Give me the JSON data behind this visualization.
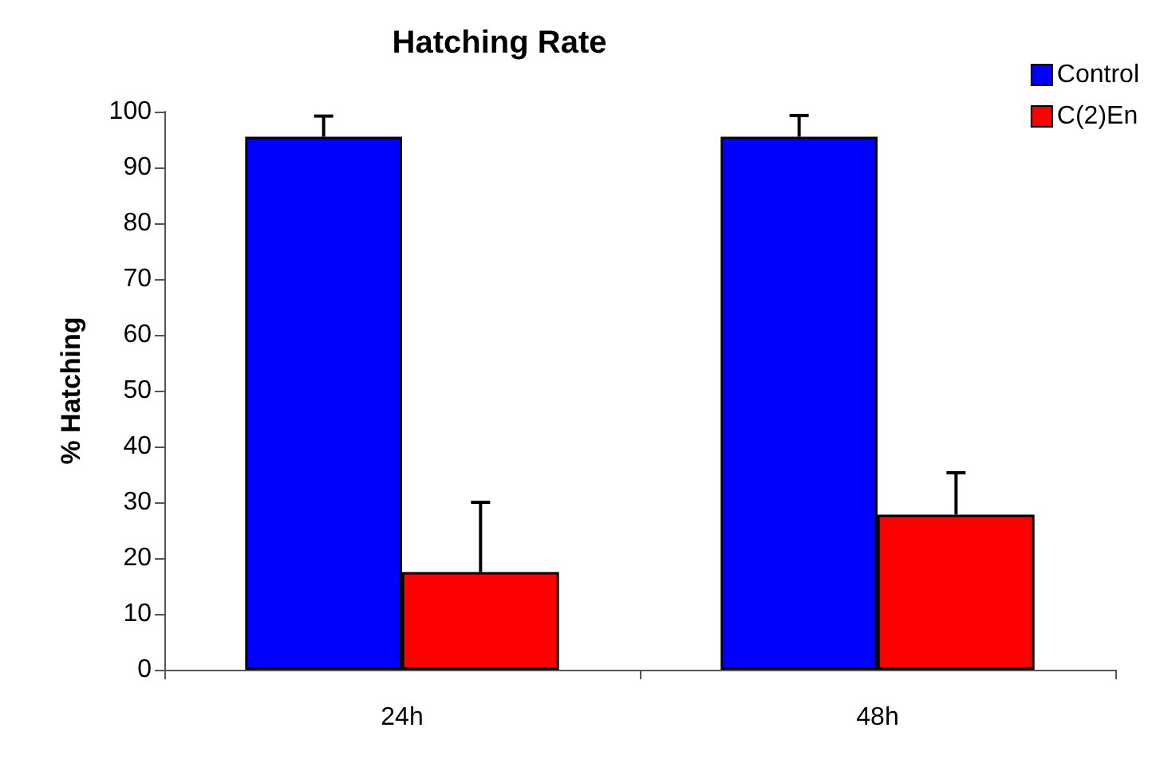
{
  "chart_data": {
    "type": "bar",
    "title": "Hatching Rate",
    "ylabel": "% Hatching",
    "categories": [
      "24h",
      "48h"
    ],
    "series": [
      {
        "name": "Control",
        "color": "#0000ff",
        "values": [
          95.5,
          95.5
        ],
        "errors": [
          [
            95.5,
            99.2
          ],
          [
            95.5,
            99.3
          ]
        ]
      },
      {
        "name": "C(2)En",
        "color": "#ff0000",
        "values": [
          17.5,
          27.8
        ],
        "errors": [
          [
            17.5,
            30
          ],
          [
            27.8,
            35.3
          ]
        ]
      }
    ],
    "ylim": [
      0,
      100
    ],
    "yticks": [
      0,
      10,
      20,
      30,
      40,
      50,
      60,
      70,
      80,
      90,
      100
    ],
    "grid": false,
    "legend": "top right"
  }
}
